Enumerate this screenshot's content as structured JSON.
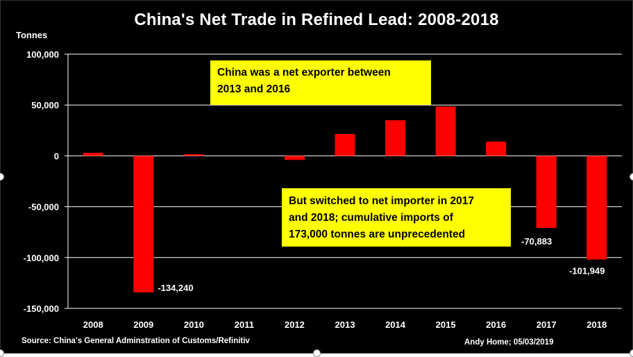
{
  "chart_data": {
    "type": "bar",
    "title": "China's Net Trade in Refined Lead: 2008-2018",
    "ylabel": "Tonnes",
    "xlabel": "",
    "categories": [
      "2008",
      "2009",
      "2010",
      "2011",
      "2012",
      "2013",
      "2014",
      "2015",
      "2016",
      "2017",
      "2018"
    ],
    "values": [
      3000,
      -134240,
      1500,
      0,
      -4000,
      21500,
      35000,
      48500,
      14000,
      -70883,
      -101949
    ],
    "data_labels": {
      "2009": "-134,240",
      "2017": "-70,883",
      "2018": "-101,949"
    },
    "ylim": [
      -150000,
      100000
    ],
    "yticks": [
      100000,
      50000,
      0,
      -50000,
      -100000,
      -150000
    ],
    "ytick_labels": [
      "100,000",
      "50,000",
      "0",
      "-50,000",
      "-100,000",
      "-150,000"
    ],
    "grid": true,
    "bar_color": "#ff0000",
    "background": "#000000",
    "text_color": "#ffffff",
    "annotations": [
      "China was a net exporter between\n2013 and 2016",
      "But switched to net importer in 2017\nand 2018; cumulative imports of\n173,000 tonnes are unprecedented"
    ],
    "annotation_color": "#ffff00",
    "source": "Source: China's General Adminstration of Customs/Refinitiv",
    "credit": "Andy Home; 05/03/2019"
  }
}
